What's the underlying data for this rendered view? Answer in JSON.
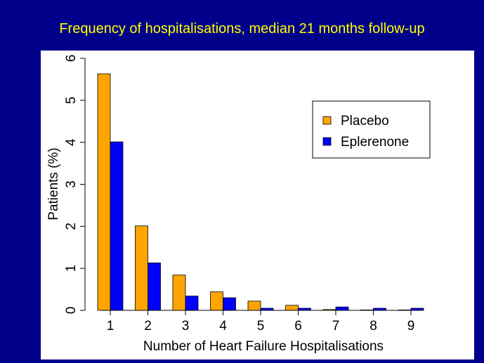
{
  "slide": {
    "title": "Frequency of hospitalisations, median 21 months follow-up"
  },
  "colors": {
    "background": "#00008B",
    "title": "#FFFF00",
    "placebo": "#FFA500",
    "eplerenone": "#0000FF"
  },
  "chart_data": {
    "type": "bar",
    "title": "",
    "xlabel": "Number of Heart Failure Hospitalisations",
    "ylabel": "Patients (%)",
    "categories": [
      "1",
      "2",
      "3",
      "4",
      "5",
      "6",
      "7",
      "8",
      "9"
    ],
    "series": [
      {
        "name": "Placebo",
        "color": "#FFA500",
        "values": [
          5.63,
          2.01,
          0.84,
          0.44,
          0.22,
          0.12,
          0.02,
          0.01,
          0.01
        ]
      },
      {
        "name": "Eplerenone",
        "color": "#0000FF",
        "values": [
          4.01,
          1.13,
          0.34,
          0.3,
          0.05,
          0.05,
          0.08,
          0.05,
          0.05
        ]
      }
    ],
    "ylim": [
      0,
      6
    ],
    "yticks": [
      "0",
      "1",
      "2",
      "3",
      "4",
      "5",
      "6"
    ],
    "grid": false,
    "legend_position": "top-right"
  }
}
